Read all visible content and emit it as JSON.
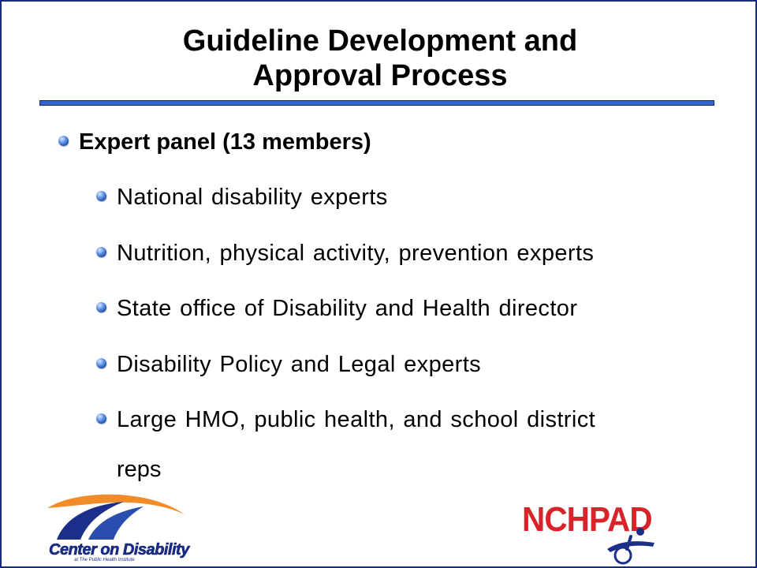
{
  "slide": {
    "title_line1": "Guideline Development and",
    "title_line2": "Approval Process",
    "main_bullet": "Expert panel (13 members)",
    "sub_bullets": [
      "National disability experts",
      "Nutrition, physical activity, prevention experts",
      "State office of Disability and Health director",
      "Disability Policy and Legal experts",
      "Large HMO, public health, and school district"
    ],
    "sub_bullet_continuation": "reps"
  },
  "logos": {
    "left_text": "Center on Disability",
    "left_subtext": "at The Public Health Institute",
    "right_text": "NCHPAD"
  },
  "colors": {
    "title_rule": "#3366cc",
    "border": "#1a2a7a",
    "nchpad_red": "#d8232a",
    "cod_blue": "#1b2f8a",
    "cod_orange": "#f28c28"
  }
}
